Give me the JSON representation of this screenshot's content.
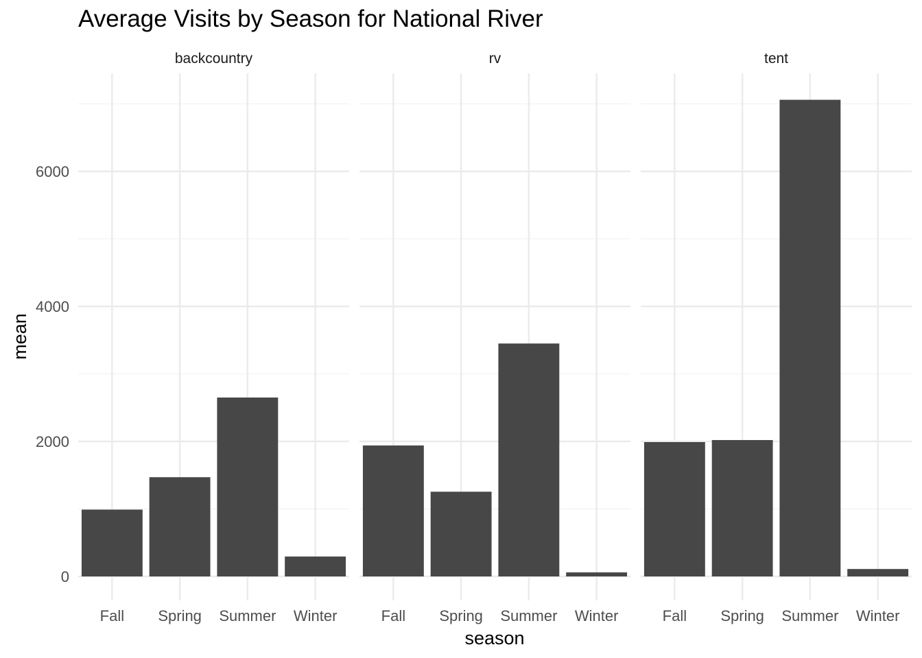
{
  "chart_data": {
    "type": "bar",
    "title": "Average Visits by Season for National River",
    "xlabel": "season",
    "ylabel": "mean",
    "categories": [
      "Fall",
      "Spring",
      "Summer",
      "Winter"
    ],
    "facets": [
      {
        "name": "backcountry",
        "values": [
          990,
          1470,
          2650,
          295
        ]
      },
      {
        "name": "rv",
        "values": [
          1940,
          1255,
          3450,
          60
        ]
      },
      {
        "name": "tent",
        "values": [
          1990,
          2020,
          7060,
          110
        ]
      }
    ],
    "ylim": [
      0,
      7350
    ],
    "yticks": [
      0,
      2000,
      4000,
      6000
    ],
    "grid": true,
    "legend": "none",
    "colors": {
      "bar": "#474747",
      "grid_major": "#ebebeb",
      "grid_minor": "#f2f2f2"
    }
  }
}
